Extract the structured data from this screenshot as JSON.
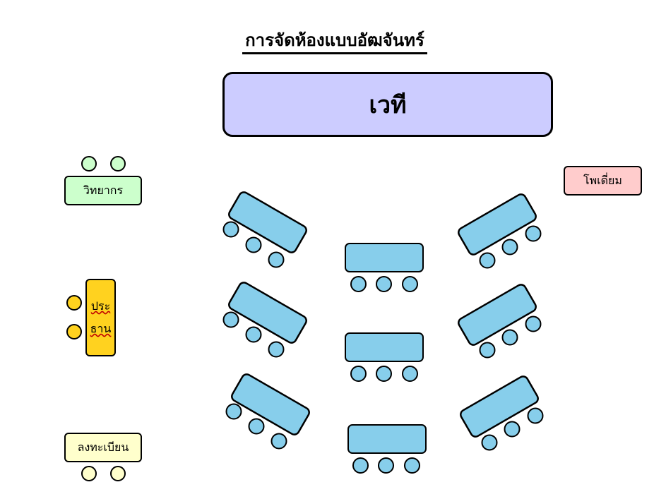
{
  "title": "การจัดห้องแบบอัฒจันทร์",
  "stage_label": "เวที",
  "speaker_label": "วิทยากร",
  "chairman_line1": "ประ",
  "chairman_line2": "ธาน",
  "podium_label": "โพเดี่ยม",
  "register_label": "ลงทะเบียน",
  "colors": {
    "stage": "#ccccff",
    "speaker": "#ccffcc",
    "podium": "#ffcccc",
    "register": "#ffffcc",
    "chairman": "#ffd21f",
    "table": "#87ceeb"
  }
}
